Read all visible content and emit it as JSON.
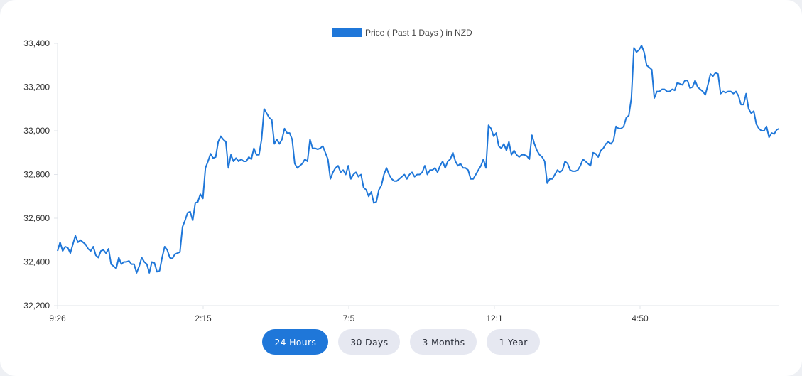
{
  "chart_data": {
    "type": "line",
    "legend": {
      "label": "Price ( Past 1 Days ) in NZD",
      "position": "top",
      "color": "#1f77d9"
    },
    "x_ticks": [
      "9:26",
      "2:15",
      "7:5",
      "12:1",
      "4:50"
    ],
    "y_ticks": [
      "32,200",
      "32,400",
      "32,600",
      "32,800",
      "33,000",
      "33,200",
      "33,400"
    ],
    "ylim": [
      32200,
      33400
    ],
    "grid": false,
    "series": [
      {
        "color": "#1f77d9",
        "values": [
          32450,
          32490,
          32450,
          32470,
          32465,
          32440,
          32480,
          32520,
          32490,
          32500,
          32490,
          32480,
          32460,
          32450,
          32470,
          32430,
          32420,
          32450,
          32455,
          32440,
          32460,
          32390,
          32380,
          32370,
          32420,
          32390,
          32400,
          32400,
          32405,
          32390,
          32390,
          32350,
          32380,
          32420,
          32400,
          32390,
          32350,
          32400,
          32395,
          32355,
          32360,
          32420,
          32470,
          32455,
          32420,
          32415,
          32435,
          32440,
          32445,
          32560,
          32590,
          32625,
          32630,
          32590,
          32670,
          32675,
          32710,
          32690,
          32830,
          32860,
          32895,
          32875,
          32880,
          32950,
          32975,
          32960,
          32950,
          32830,
          32890,
          32860,
          32875,
          32860,
          32870,
          32860,
          32860,
          32880,
          32870,
          32920,
          32890,
          32890,
          32960,
          33100,
          33080,
          33060,
          33050,
          32940,
          32960,
          32940,
          32960,
          33010,
          32990,
          32990,
          32960,
          32850,
          32830,
          32840,
          32850,
          32870,
          32860,
          32960,
          32920,
          32920,
          32915,
          32920,
          32930,
          32900,
          32870,
          32780,
          32810,
          32830,
          32840,
          32810,
          32820,
          32800,
          32840,
          32780,
          32800,
          32810,
          32790,
          32800,
          32740,
          32730,
          32700,
          32720,
          32670,
          32675,
          32730,
          32750,
          32800,
          32830,
          32800,
          32780,
          32770,
          32770,
          32780,
          32790,
          32800,
          32780,
          32800,
          32810,
          32790,
          32800,
          32800,
          32810,
          32840,
          32800,
          32820,
          32820,
          32830,
          32810,
          32840,
          32860,
          32830,
          32860,
          32870,
          32900,
          32860,
          32840,
          32850,
          32830,
          32830,
          32820,
          32780,
          32780,
          32800,
          32820,
          32840,
          32870,
          32830,
          33025,
          33010,
          32975,
          32990,
          32930,
          32920,
          32940,
          32910,
          32950,
          32890,
          32910,
          32890,
          32880,
          32890,
          32890,
          32885,
          32870,
          32980,
          32940,
          32910,
          32890,
          32880,
          32860,
          32760,
          32780,
          32780,
          32800,
          32820,
          32810,
          32820,
          32860,
          32850,
          32820,
          32815,
          32815,
          32820,
          32840,
          32870,
          32860,
          32850,
          32840,
          32900,
          32895,
          32880,
          32910,
          32920,
          32940,
          32950,
          32940,
          32955,
          33020,
          33010,
          33010,
          33020,
          33060,
          33070,
          33150,
          33380,
          33360,
          33370,
          33390,
          33360,
          33300,
          33290,
          33280,
          33150,
          33180,
          33180,
          33190,
          33190,
          33180,
          33180,
          33190,
          33185,
          33220,
          33215,
          33210,
          33230,
          33230,
          33195,
          33200,
          33230,
          33200,
          33190,
          33180,
          33165,
          33210,
          33260,
          33250,
          33265,
          33260,
          33170,
          33180,
          33175,
          33180,
          33180,
          33170,
          33180,
          33160,
          33120,
          33120,
          33170,
          33100,
          33080,
          33090,
          33030,
          33010,
          33000,
          33000,
          33020,
          32970,
          32990,
          32985,
          33005,
          33010
        ]
      }
    ]
  },
  "controls": {
    "ranges": [
      {
        "label": "24 Hours",
        "active": true
      },
      {
        "label": "30 Days",
        "active": false
      },
      {
        "label": "3 Months",
        "active": false
      },
      {
        "label": "1 Year",
        "active": false
      }
    ]
  }
}
